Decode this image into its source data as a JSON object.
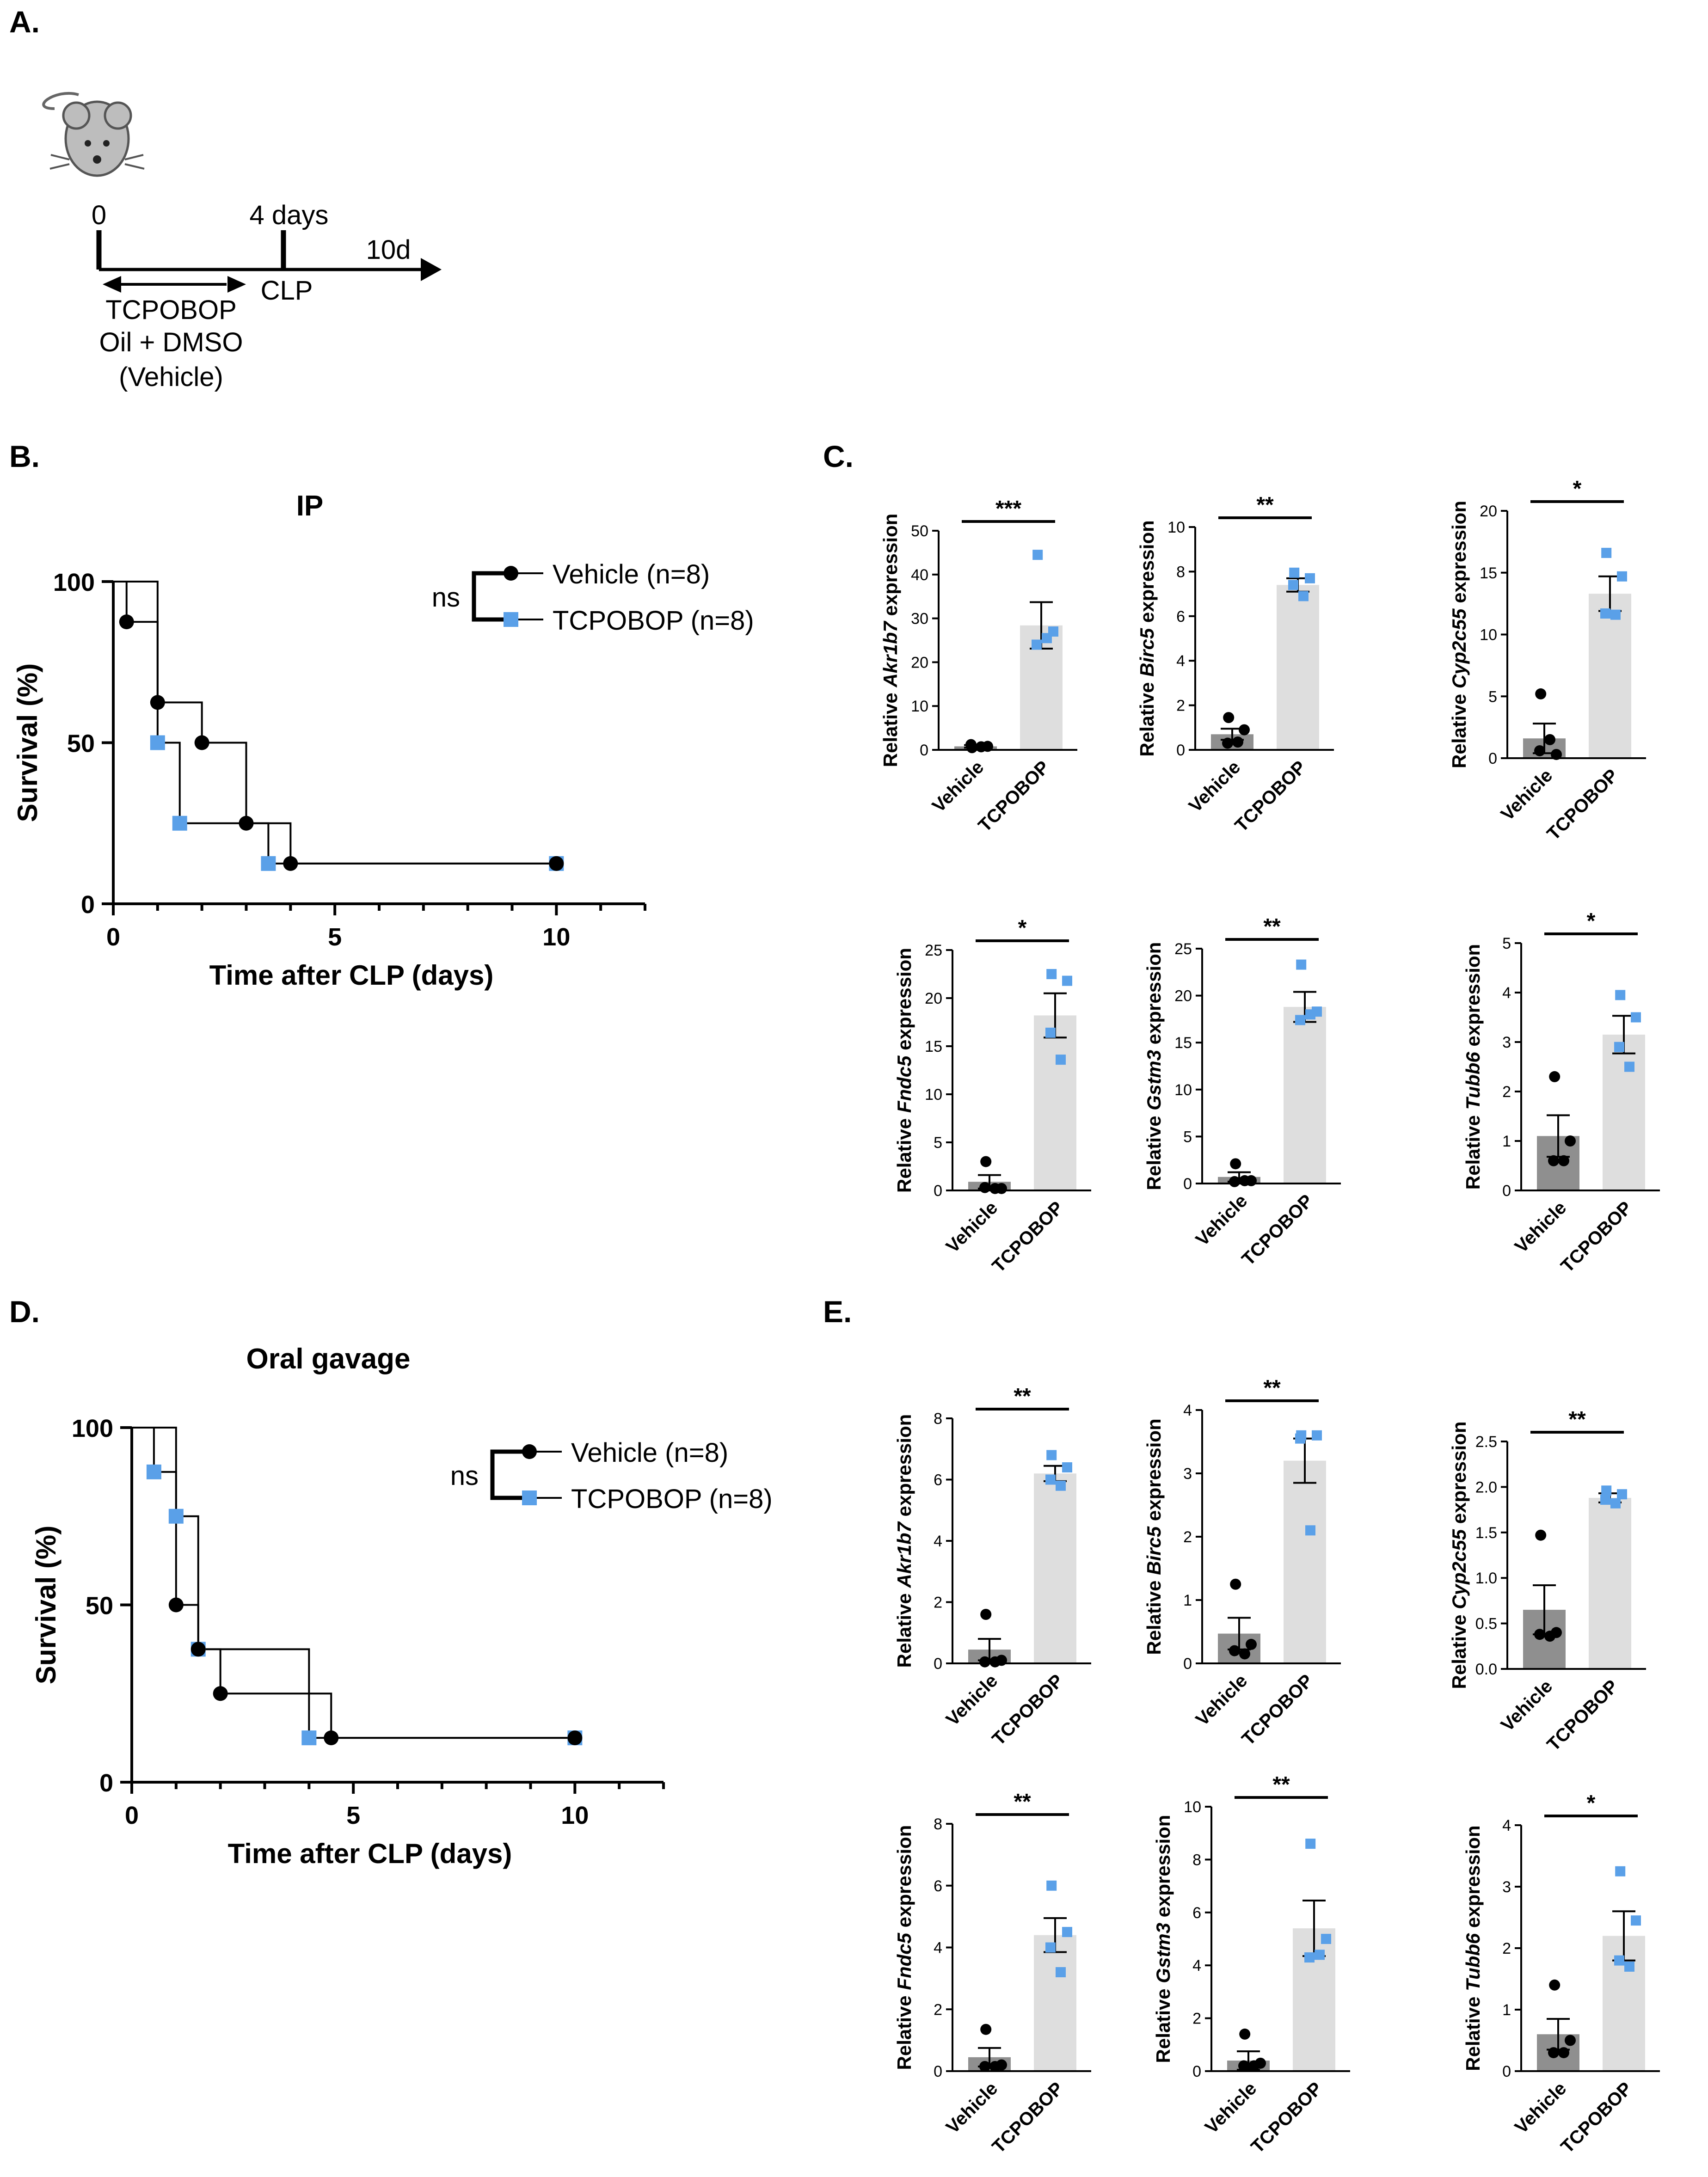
{
  "panels": {
    "A": {
      "label": "A.",
      "t0": "0",
      "t4": "4 days",
      "t10": "10d",
      "clp": "CLP",
      "treatment": "TCPOBOP",
      "vehicle_line1": "Oil + DMSO",
      "vehicle_line2": "(Vehicle)",
      "mouse_icon": "mouse-icon"
    },
    "B": {
      "label": "B."
    },
    "C": {
      "label": "C."
    },
    "D": {
      "label": "D."
    },
    "E": {
      "label": "E."
    }
  },
  "colors": {
    "vehicle": "#000000",
    "tcpobop": "#5aa0e8",
    "bar_vehicle": "#8f8f8f",
    "bar_tcpobop": "#dedede"
  },
  "chart_data": [
    {
      "id": "B",
      "type": "line",
      "subtype": "kaplan-meier",
      "title": "IP",
      "xlabel": "Time after CLP (days)",
      "ylabel": "Survival (%)",
      "xlim": [
        0,
        12
      ],
      "ylim": [
        0,
        100
      ],
      "xticks": [
        0,
        5,
        10
      ],
      "yticks": [
        0,
        50,
        100
      ],
      "legend": {
        "position": "top-right",
        "stat": "ns"
      },
      "series": [
        {
          "name": "Vehicle (n=8)",
          "marker": "circle",
          "steps": [
            [
              0,
              100
            ],
            [
              0.3,
              87.5
            ],
            [
              1,
              62.5
            ],
            [
              2,
              50
            ],
            [
              3,
              25
            ],
            [
              4,
              12.5
            ],
            [
              10,
              12.5
            ]
          ],
          "points": [
            [
              0.3,
              87.5
            ],
            [
              1,
              62.5
            ],
            [
              2,
              50
            ],
            [
              3,
              25
            ],
            [
              4,
              12.5
            ],
            [
              10,
              12.5
            ]
          ]
        },
        {
          "name": "TCPOBOP (n=8)",
          "marker": "square",
          "steps": [
            [
              0,
              100
            ],
            [
              1,
              50
            ],
            [
              1.5,
              25
            ],
            [
              3.5,
              12.5
            ],
            [
              10,
              12.5
            ]
          ],
          "points": [
            [
              1,
              50
            ],
            [
              1.5,
              25
            ],
            [
              3.5,
              12.5
            ],
            [
              10,
              12.5
            ]
          ]
        }
      ]
    },
    {
      "id": "D",
      "type": "line",
      "subtype": "kaplan-meier",
      "title": "Oral gavage",
      "xlabel": "Time after CLP (days)",
      "ylabel": "Survival (%)",
      "xlim": [
        0,
        12
      ],
      "ylim": [
        0,
        100
      ],
      "xticks": [
        0,
        5,
        10
      ],
      "yticks": [
        0,
        50,
        100
      ],
      "legend": {
        "position": "top-right",
        "stat": "ns"
      },
      "series": [
        {
          "name": "Vehicle (n=8)",
          "marker": "circle",
          "steps": [
            [
              0,
              100
            ],
            [
              1,
              50
            ],
            [
              1.5,
              37.5
            ],
            [
              2,
              25
            ],
            [
              4.5,
              12.5
            ],
            [
              10,
              12.5
            ]
          ],
          "points": [
            [
              1,
              50
            ],
            [
              1.5,
              37.5
            ],
            [
              2,
              25
            ],
            [
              4.5,
              12.5
            ],
            [
              10,
              12.5
            ]
          ]
        },
        {
          "name": "TCPOBOP (n=8)",
          "marker": "square",
          "steps": [
            [
              0,
              100
            ],
            [
              0.5,
              87.5
            ],
            [
              1,
              75
            ],
            [
              1.5,
              37.5
            ],
            [
              4,
              12.5
            ],
            [
              10,
              12.5
            ]
          ],
          "points": [
            [
              0.5,
              87.5
            ],
            [
              1,
              75
            ],
            [
              1.5,
              37.5
            ],
            [
              4,
              12.5
            ],
            [
              10,
              12.5
            ]
          ]
        }
      ]
    },
    {
      "id": "C1",
      "type": "bar",
      "gene": "Akr1b7",
      "ylabel_prefix": "Relative ",
      "ylabel_suffix": " expression",
      "categories": [
        "Vehicle",
        "TCPOBOP"
      ],
      "ylim": [
        0,
        50
      ],
      "yticks": [
        0,
        10,
        20,
        30,
        40,
        50
      ],
      "sig": "***",
      "means": [
        0.8,
        28.4
      ],
      "sem": [
        0.3,
        5.3
      ],
      "points": [
        [
          0.5,
          0.8,
          1.2,
          0.7
        ],
        [
          44.5,
          27,
          24,
          25.5
        ]
      ]
    },
    {
      "id": "C2",
      "type": "bar",
      "gene": "Birc5",
      "ylabel_prefix": "Relative ",
      "ylabel_suffix": " expression",
      "categories": [
        "Vehicle",
        "TCPOBOP"
      ],
      "ylim": [
        0,
        10
      ],
      "yticks": [
        0,
        2,
        4,
        6,
        8,
        10
      ],
      "sig": "**",
      "means": [
        0.7,
        7.4
      ],
      "sem": [
        0.25,
        0.3
      ],
      "points": [
        [
          1.45,
          0.9,
          0.3,
          0.35
        ],
        [
          7.95,
          7.7,
          7.4,
          6.9
        ]
      ]
    },
    {
      "id": "C3",
      "type": "bar",
      "gene": "Cyp2c55",
      "ylabel_prefix": "Relative ",
      "ylabel_suffix": " expression",
      "categories": [
        "Vehicle",
        "TCPOBOP"
      ],
      "ylim": [
        0,
        20
      ],
      "yticks": [
        0,
        5,
        10,
        15,
        20
      ],
      "sig": "*",
      "means": [
        1.6,
        13.3
      ],
      "sem": [
        1.2,
        1.4
      ],
      "points": [
        [
          5.2,
          0.3,
          0.6,
          1.5
        ],
        [
          16.6,
          14.7,
          11.7,
          11.6
        ]
      ]
    },
    {
      "id": "C4",
      "type": "bar",
      "gene": "Fndc5",
      "ylabel_prefix": "Relative ",
      "ylabel_suffix": " expression",
      "categories": [
        "Vehicle",
        "TCPOBOP"
      ],
      "ylim": [
        0,
        25
      ],
      "yticks": [
        0,
        5,
        10,
        15,
        20,
        25
      ],
      "sig": "*",
      "means": [
        0.9,
        18.2
      ],
      "sem": [
        0.7,
        2.3
      ],
      "points": [
        [
          3,
          0.2,
          0.3,
          0.2
        ],
        [
          22.5,
          21.8,
          16.4,
          13.6
        ]
      ]
    },
    {
      "id": "C5",
      "type": "bar",
      "gene": "Gstm3",
      "ylabel_prefix": "Relative ",
      "ylabel_suffix": " expression",
      "categories": [
        "Vehicle",
        "TCPOBOP"
      ],
      "ylim": [
        0,
        25
      ],
      "yticks": [
        0,
        5,
        10,
        15,
        20,
        25
      ],
      "sig": "**",
      "means": [
        0.7,
        18.8
      ],
      "sem": [
        0.5,
        1.6
      ],
      "points": [
        [
          2.1,
          0.3,
          0.2,
          0.3
        ],
        [
          23.3,
          18.3,
          17.4,
          18.0
        ]
      ]
    },
    {
      "id": "C6",
      "type": "bar",
      "gene": "Tubb6",
      "ylabel_prefix": "Relative ",
      "ylabel_suffix": " expression",
      "categories": [
        "Vehicle",
        "TCPOBOP"
      ],
      "ylim": [
        0,
        5
      ],
      "yticks": [
        0,
        1,
        2,
        3,
        4,
        5
      ],
      "sig": "*",
      "means": [
        1.1,
        3.15
      ],
      "sem": [
        0.42,
        0.38
      ],
      "points": [
        [
          2.3,
          1.0,
          0.6,
          0.6
        ],
        [
          3.95,
          3.5,
          2.9,
          2.5
        ]
      ]
    },
    {
      "id": "E1",
      "type": "bar",
      "gene": "Akr1b7",
      "ylabel_prefix": "Relative ",
      "ylabel_suffix": " expression",
      "categories": [
        "Vehicle",
        "TCPOBOP"
      ],
      "ylim": [
        0,
        8
      ],
      "yticks": [
        0,
        2,
        4,
        6,
        8
      ],
      "sig": "**",
      "means": [
        0.45,
        6.2
      ],
      "sem": [
        0.35,
        0.25
      ],
      "points": [
        [
          1.6,
          0.1,
          0.05,
          0.05
        ],
        [
          6.8,
          6.4,
          6.0,
          5.8
        ]
      ]
    },
    {
      "id": "E2",
      "type": "bar",
      "gene": "Birc5",
      "ylabel_prefix": "Relative ",
      "ylabel_suffix": " expression",
      "categories": [
        "Vehicle",
        "TCPOBOP"
      ],
      "ylim": [
        0,
        4
      ],
      "yticks": [
        0,
        1,
        2,
        3,
        4
      ],
      "sig": "**",
      "means": [
        0.47,
        3.2
      ],
      "sem": [
        0.25,
        0.35
      ],
      "points": [
        [
          1.25,
          0.3,
          0.2,
          0.15
        ],
        [
          3.6,
          3.6,
          3.55,
          2.1
        ]
      ]
    },
    {
      "id": "E3",
      "type": "bar",
      "gene": "Cyp2c55",
      "ylabel_prefix": "Relative ",
      "ylabel_suffix": " expression",
      "categories": [
        "Vehicle",
        "TCPOBOP"
      ],
      "ylim": [
        0,
        2.5
      ],
      "yticks": [
        0,
        0.5,
        1.0,
        1.5,
        2.0,
        2.5
      ],
      "sig": "**",
      "means": [
        0.65,
        1.88
      ],
      "sem": [
        0.27,
        0.05
      ],
      "points": [
        [
          1.47,
          0.4,
          0.38,
          0.36
        ],
        [
          1.96,
          1.92,
          1.86,
          1.82
        ]
      ]
    },
    {
      "id": "E4",
      "type": "bar",
      "gene": "Fndc5",
      "ylabel_prefix": "Relative ",
      "ylabel_suffix": " expression",
      "categories": [
        "Vehicle",
        "TCPOBOP"
      ],
      "ylim": [
        0,
        8
      ],
      "yticks": [
        0,
        2,
        4,
        6,
        8
      ],
      "sig": "**",
      "means": [
        0.45,
        4.4
      ],
      "sem": [
        0.3,
        0.55
      ],
      "points": [
        [
          1.35,
          0.2,
          0.15,
          0.15
        ],
        [
          6.0,
          4.5,
          4.0,
          3.2
        ]
      ]
    },
    {
      "id": "E5",
      "type": "bar",
      "gene": "Gstm3",
      "ylabel_prefix": "Relative ",
      "ylabel_suffix": " expression",
      "categories": [
        "Vehicle",
        "TCPOBOP"
      ],
      "ylim": [
        0,
        10
      ],
      "yticks": [
        0,
        2,
        4,
        6,
        8,
        10
      ],
      "sig": "**",
      "means": [
        0.4,
        5.4
      ],
      "sem": [
        0.35,
        1.05
      ],
      "points": [
        [
          1.4,
          0.3,
          0.2,
          0.2
        ],
        [
          8.6,
          5.0,
          4.3,
          4.4
        ]
      ]
    },
    {
      "id": "E6",
      "type": "bar",
      "gene": "Tubb6",
      "ylabel_prefix": "Relative ",
      "ylabel_suffix": " expression",
      "categories": [
        "Vehicle",
        "TCPOBOP"
      ],
      "ylim": [
        0,
        4
      ],
      "yticks": [
        0,
        1,
        2,
        3,
        4
      ],
      "sig": "*",
      "means": [
        0.6,
        2.2
      ],
      "sem": [
        0.25,
        0.4
      ],
      "points": [
        [
          1.4,
          0.5,
          0.3,
          0.3
        ],
        [
          3.25,
          2.45,
          1.8,
          1.7
        ]
      ]
    }
  ]
}
